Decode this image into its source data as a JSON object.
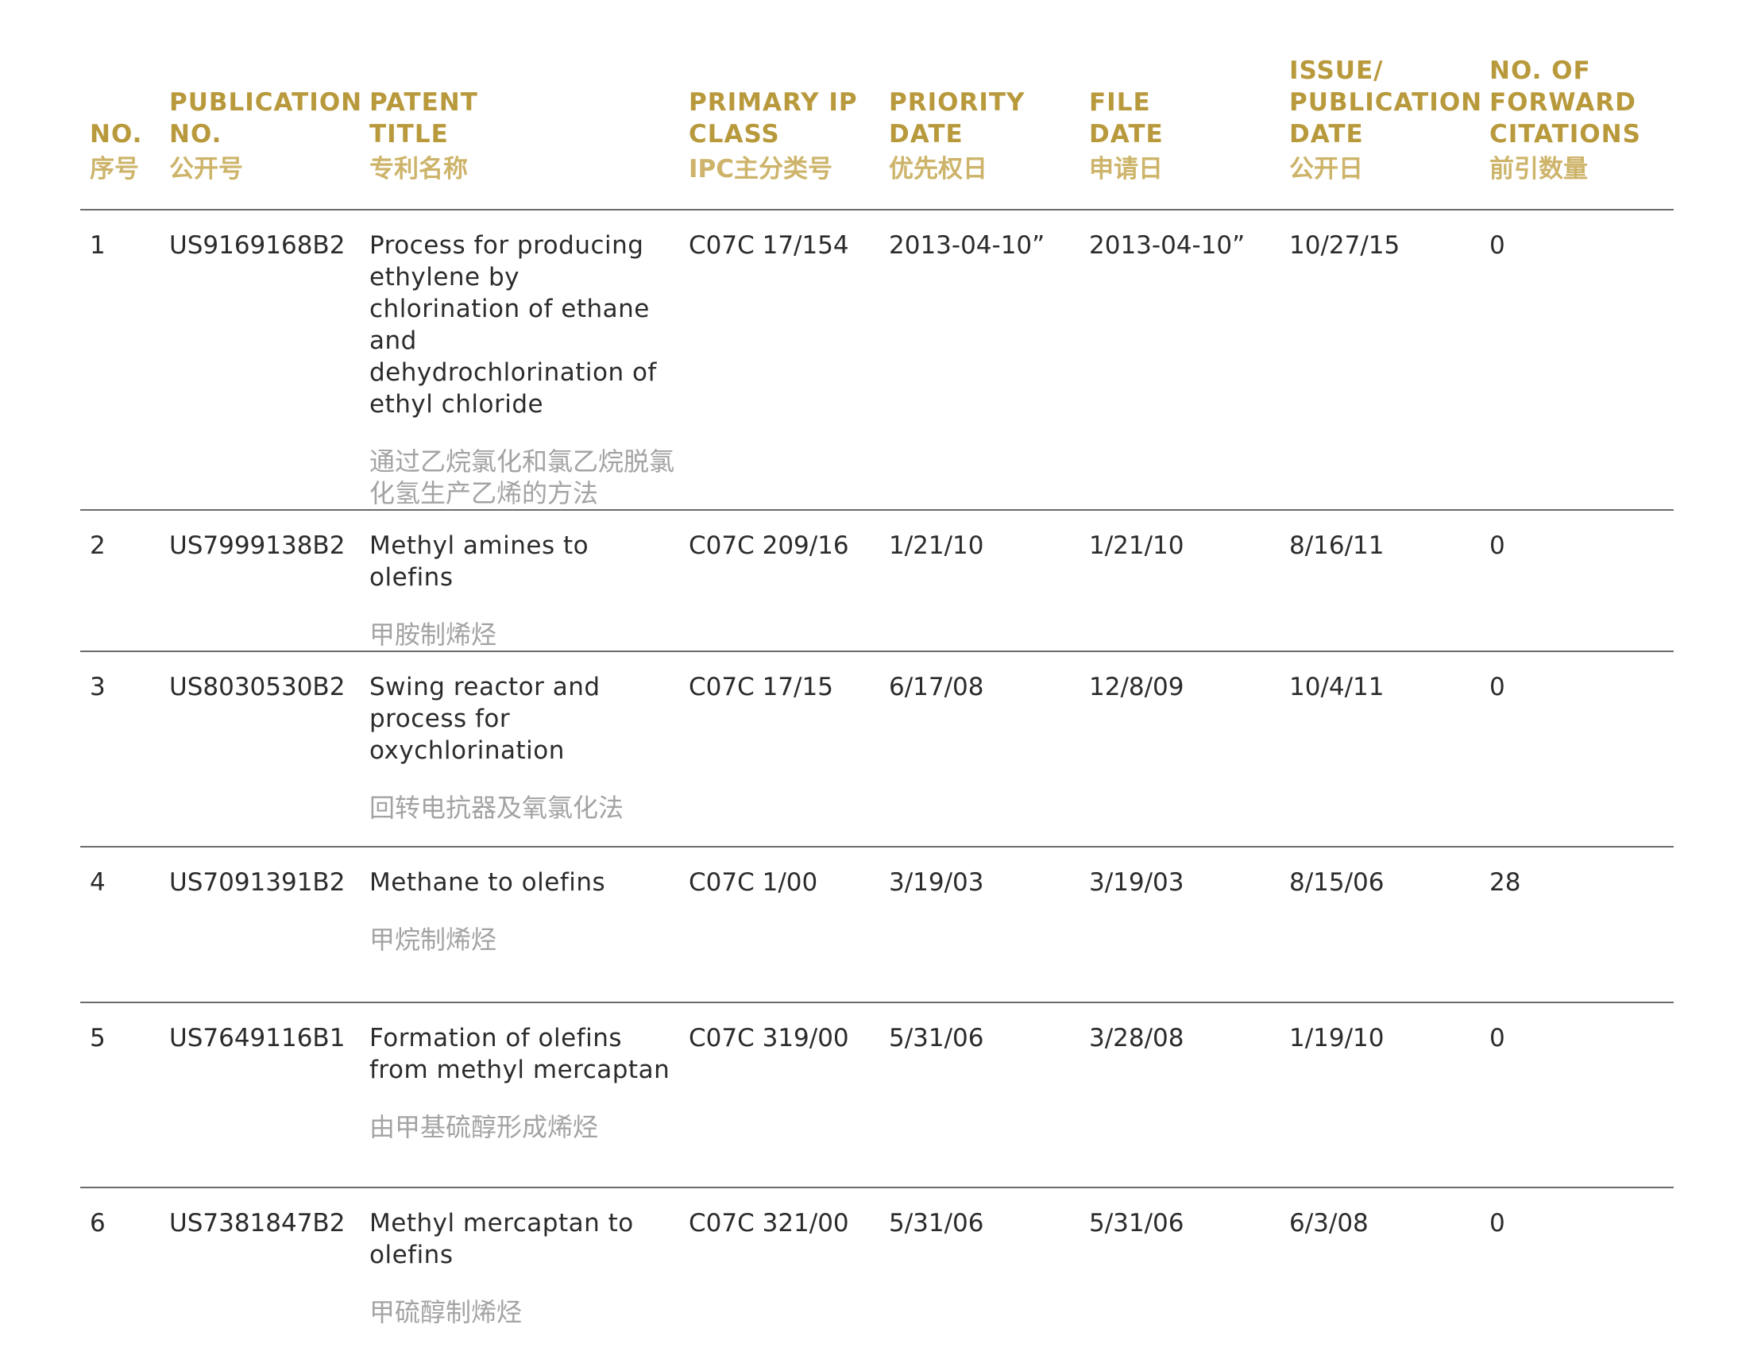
{
  "headers": {
    "no": {
      "en": "NO.",
      "zh": "序号"
    },
    "publication_no": {
      "en": "PUBLICATION\nNO.",
      "zh": "公开号"
    },
    "patent_title": {
      "en": "PATENT\nTITLE",
      "zh": "专利名称"
    },
    "primary_ip_class": {
      "en": "PRIMARY IP\nCLASS",
      "zh": "IPC主分类号"
    },
    "priority_date": {
      "en": "PRIORITY\nDATE",
      "zh": "优先权日"
    },
    "file_date": {
      "en": "FILE\nDATE",
      "zh": "申请日"
    },
    "issue_publication_date": {
      "en": "ISSUE/\nPUBLICATION\nDATE",
      "zh": "公开日"
    },
    "forward_citations": {
      "en": "NO. OF\nFORWARD\nCITATIONS",
      "zh": "前引数量"
    }
  },
  "rows": [
    {
      "no": "1",
      "publication_no": "US9169168B2",
      "title_en": "Process for producing ethylene by chlorination of ethane and dehydrochlorination of ethyl chloride",
      "title_zh": "通过乙烷氯化和氯乙烷脱氯化氢生产乙烯的方法",
      "ipc": "C07C 17/154",
      "priority_date": "2013-04-10”",
      "file_date": "2013-04-10”",
      "issue_date": "10/27/15",
      "citations": "0"
    },
    {
      "no": "2",
      "publication_no": "US7999138B2",
      "title_en": "Methyl amines to olefins",
      "title_zh": "甲胺制烯烃",
      "ipc": "C07C 209/16",
      "priority_date": "1/21/10",
      "file_date": "1/21/10",
      "issue_date": "8/16/11",
      "citations": "0"
    },
    {
      "no": "3",
      "publication_no": "US8030530B2",
      "title_en": "Swing reactor and process for oxychlorination",
      "title_zh": "回转电抗器及氧氯化法",
      "ipc": "C07C 17/15",
      "priority_date": "6/17/08",
      "file_date": "12/8/09",
      "issue_date": "10/4/11",
      "citations": "0"
    },
    {
      "no": "4",
      "publication_no": "US7091391B2",
      "title_en": "Methane to olefins",
      "title_zh": "甲烷制烯烃",
      "ipc": "C07C 1/00",
      "priority_date": "3/19/03",
      "file_date": "3/19/03",
      "issue_date": "8/15/06",
      "citations": "28"
    },
    {
      "no": "5",
      "publication_no": "US7649116B1",
      "title_en": "Formation of olefins from methyl mercaptan",
      "title_zh": "由甲基硫醇形成烯烃",
      "ipc": "C07C 319/00",
      "priority_date": "5/31/06",
      "file_date": "3/28/08",
      "issue_date": "1/19/10",
      "citations": "0"
    },
    {
      "no": "6",
      "publication_no": "US7381847B2",
      "title_en": "Methyl mercaptan to olefins",
      "title_zh": "甲硫醇制烯烃",
      "ipc": "C07C 321/00",
      "priority_date": "5/31/06",
      "file_date": "5/31/06",
      "issue_date": "6/3/08",
      "citations": "0"
    }
  ],
  "colors": {
    "header_gold": "#b8993c",
    "header_zh_gold": "#cdb46a",
    "body_text": "#2b2b2b",
    "title_zh_gray": "#a3a3a3",
    "rule": "#6b6b6b"
  }
}
